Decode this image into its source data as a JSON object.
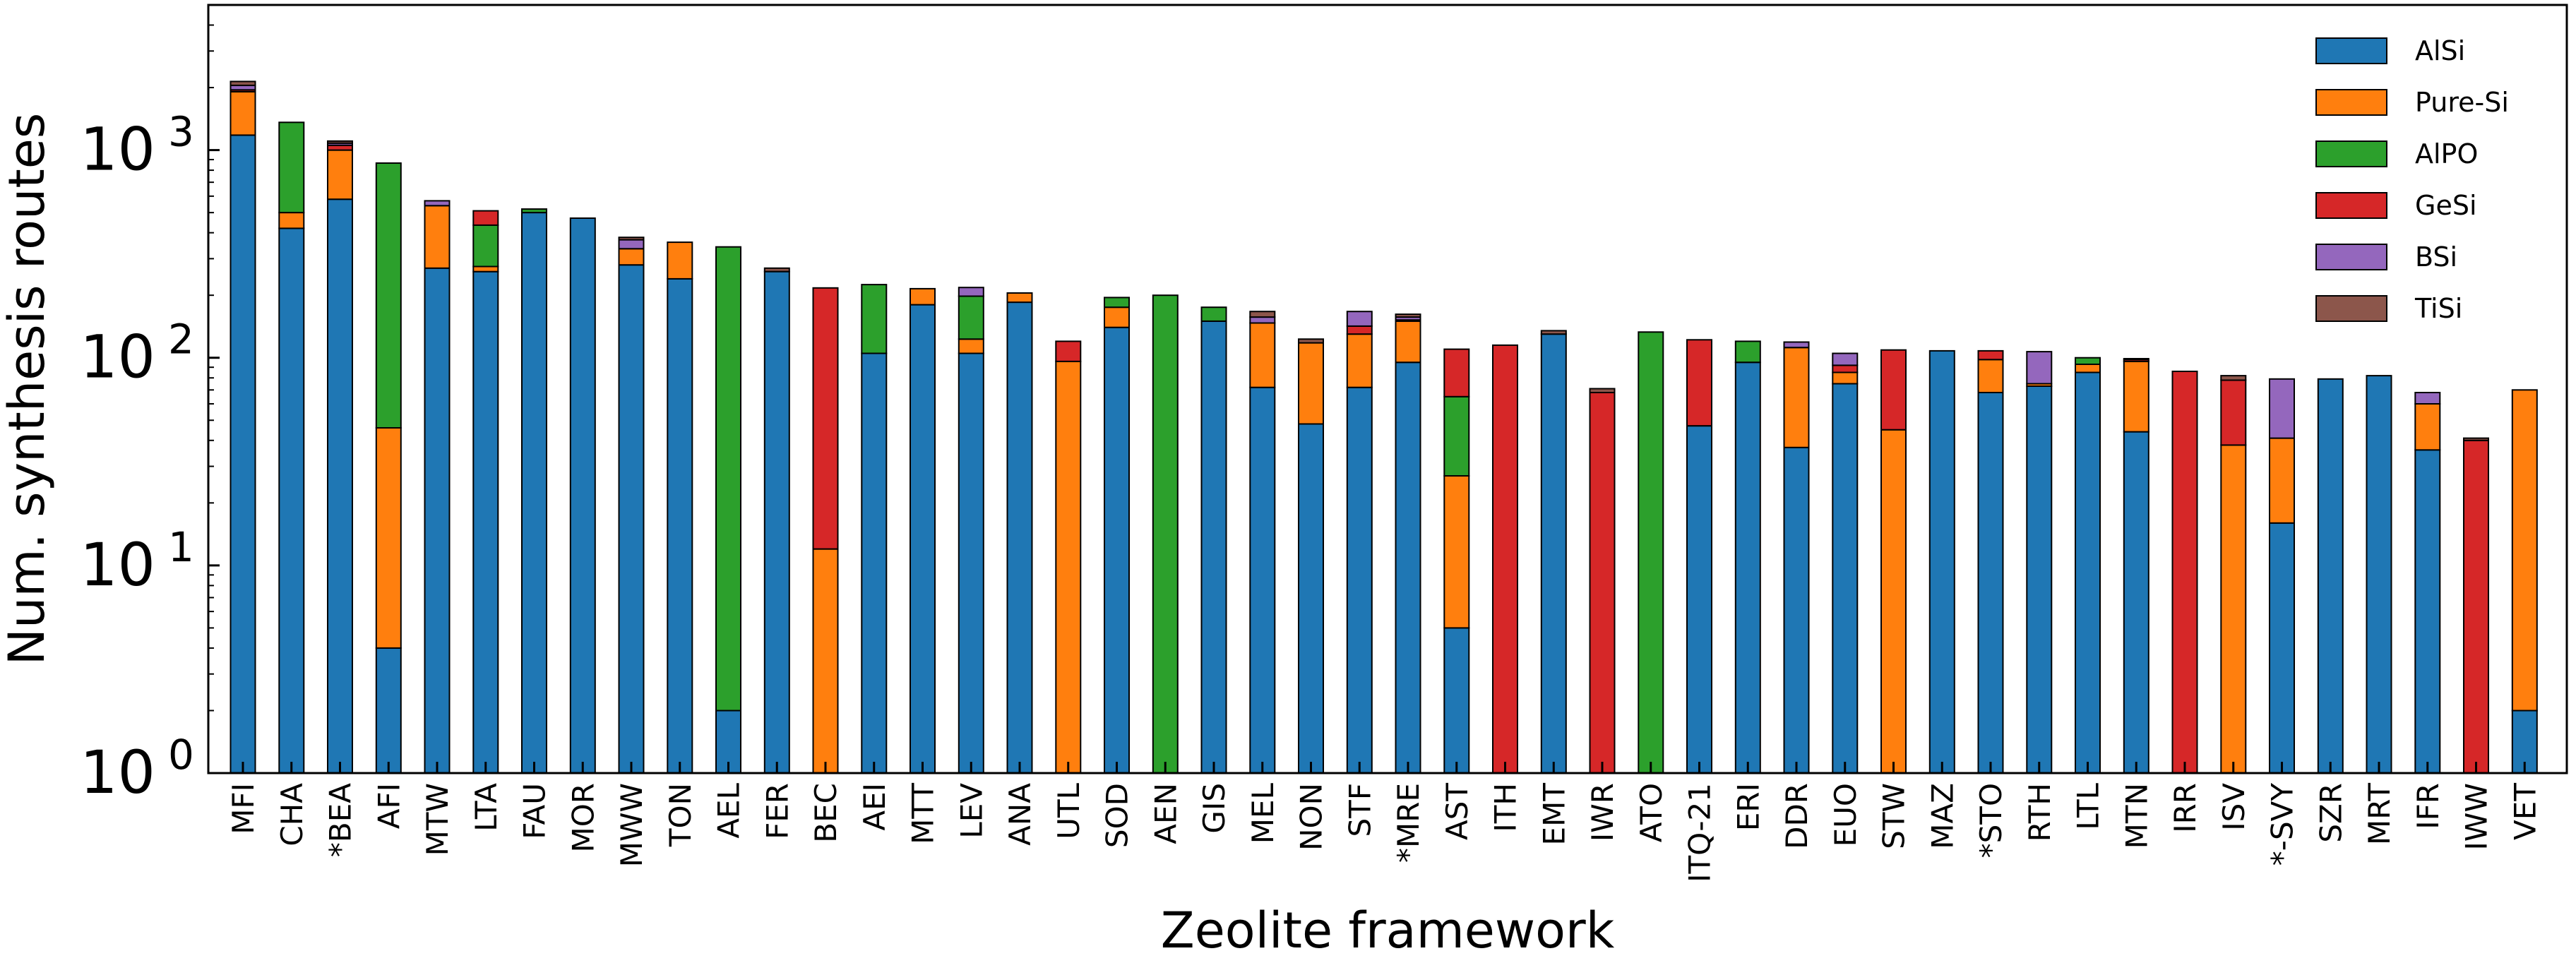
{
  "chart_data": {
    "type": "bar",
    "stacked": true,
    "xlabel": "Zeolite framework",
    "ylabel": "Num. synthesis routes",
    "yscale": "log",
    "ylim": [
      1,
      5000
    ],
    "yticks": [
      {
        "base": "10",
        "exp": "0",
        "value": 1
      },
      {
        "base": "10",
        "exp": "1",
        "value": 10
      },
      {
        "base": "10",
        "exp": "2",
        "value": 100
      },
      {
        "base": "10",
        "exp": "3",
        "value": 1000
      }
    ],
    "legend_position": "top-right",
    "grid": false,
    "categories": [
      "MFI",
      "CHA",
      "*BEA",
      "AFI",
      "MTW",
      "LTA",
      "FAU",
      "MOR",
      "MWW",
      "TON",
      "AEL",
      "FER",
      "BEC",
      "AEI",
      "MTT",
      "LEV",
      "ANA",
      "UTL",
      "SOD",
      "AEN",
      "GIS",
      "MEL",
      "NON",
      "STF",
      "*MRE",
      "AST",
      "ITH",
      "EMT",
      "IWR",
      "ATO",
      "ITQ-21",
      "ERI",
      "DDR",
      "EUO",
      "STW",
      "MAZ",
      "*STO",
      "RTH",
      "LTL",
      "MTN",
      "IRR",
      "ISV",
      "*-SVY",
      "SZR",
      "MRT",
      "IFR",
      "IWW",
      "VET"
    ],
    "series": [
      {
        "name": "AlSi",
        "color": "#1f77b4",
        "values": [
          1180,
          420,
          580,
          4,
          270,
          260,
          500,
          470,
          280,
          240,
          2,
          260,
          0,
          105,
          180,
          105,
          185,
          0,
          140,
          0,
          150,
          72,
          48,
          72,
          95,
          5,
          0,
          130,
          0,
          0,
          47,
          95,
          37,
          75,
          0,
          108,
          68,
          73,
          85,
          44,
          0,
          0,
          16,
          79,
          82,
          36,
          0,
          2
        ]
      },
      {
        "name": "Pure-Si",
        "color": "#ff7f0e",
        "values": [
          730,
          80,
          420,
          42,
          270,
          15,
          0,
          0,
          55,
          120,
          0,
          0,
          12,
          0,
          35,
          18,
          20,
          96,
          35,
          0,
          0,
          75,
          70,
          58,
          55,
          22,
          0,
          0,
          0,
          0,
          0,
          0,
          75,
          10,
          45,
          0,
          30,
          2,
          8,
          52,
          0,
          38,
          25,
          0,
          0,
          24,
          0,
          68
        ]
      },
      {
        "name": "AlPO",
        "color": "#2ca02c",
        "values": [
          0,
          860,
          0,
          820,
          0,
          160,
          20,
          0,
          0,
          0,
          340,
          0,
          0,
          120,
          0,
          75,
          0,
          0,
          20,
          200,
          25,
          0,
          0,
          0,
          0,
          38,
          0,
          0,
          0,
          133,
          0,
          25,
          0,
          0,
          0,
          0,
          0,
          0,
          7,
          0,
          0,
          0,
          0,
          0,
          0,
          0,
          0,
          0
        ]
      },
      {
        "name": "GeSi",
        "color": "#d62728",
        "values": [
          40,
          0,
          55,
          0,
          0,
          75,
          0,
          0,
          0,
          0,
          0,
          0,
          205,
          0,
          0,
          0,
          0,
          24,
          0,
          0,
          0,
          0,
          0,
          12,
          2,
          45,
          115,
          0,
          68,
          0,
          75,
          0,
          0,
          7,
          64,
          0,
          10,
          0,
          0,
          2,
          86,
          40,
          0,
          0,
          0,
          0,
          40,
          0
        ]
      },
      {
        "name": "BSi",
        "color": "#9467bd",
        "values": [
          100,
          0,
          25,
          0,
          30,
          0,
          0,
          0,
          35,
          0,
          0,
          0,
          0,
          0,
          0,
          20,
          0,
          0,
          0,
          0,
          0,
          10,
          0,
          25,
          5,
          0,
          0,
          0,
          0,
          0,
          0,
          0,
          7,
          13,
          0,
          0,
          0,
          32,
          0,
          0,
          0,
          0,
          38,
          0,
          0,
          8,
          0,
          0
        ]
      },
      {
        "name": "TiSi",
        "color": "#8c564b",
        "values": [
          90,
          0,
          25,
          0,
          0,
          0,
          0,
          0,
          10,
          0,
          0,
          10,
          0,
          0,
          0,
          0,
          0,
          0,
          0,
          0,
          0,
          10,
          5,
          0,
          5,
          0,
          0,
          5,
          3,
          0,
          0,
          0,
          0,
          0,
          0,
          0,
          0,
          0,
          0,
          1,
          0,
          4,
          0,
          0,
          0,
          0,
          1,
          0
        ]
      }
    ]
  }
}
